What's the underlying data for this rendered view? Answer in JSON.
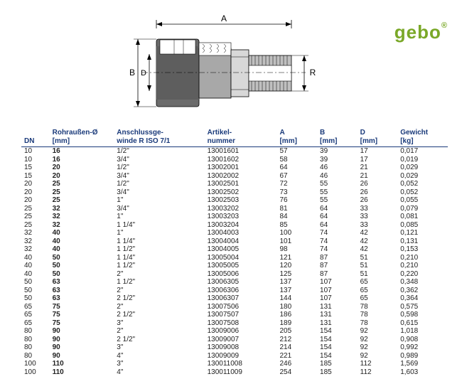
{
  "logo": {
    "text": "gebo",
    "reg": "®"
  },
  "diagram": {
    "labels": {
      "A": "A",
      "B": "B",
      "D": "D",
      "R": "R"
    },
    "stroke": "#000000",
    "fill_dark": "#6b6b6b",
    "fill_mid": "#a8a8a8",
    "fill_light": "#d8d8d8"
  },
  "table": {
    "header_color": "#1a3a7a",
    "columns": [
      {
        "l1": "",
        "l2": "DN"
      },
      {
        "l1": "Rohraußen-Ø",
        "l2": "[mm]"
      },
      {
        "l1": "Anschlussge-",
        "l2": "winde R ISO 7/1"
      },
      {
        "l1": "Artikel-",
        "l2": "nummer"
      },
      {
        "l1": "A",
        "l2": "[mm]"
      },
      {
        "l1": "B",
        "l2": "[mm]"
      },
      {
        "l1": "D",
        "l2": "[mm]"
      },
      {
        "l1": "Gewicht",
        "l2": "[kg]"
      }
    ],
    "rows": [
      [
        "10",
        "16",
        "1/2\"",
        "13001601",
        "57",
        "39",
        "17",
        "0,017"
      ],
      [
        "10",
        "16",
        "3/4\"",
        "13001602",
        "58",
        "39",
        "17",
        "0,019"
      ],
      [
        "15",
        "20",
        "1/2\"",
        "13002001",
        "64",
        "46",
        "21",
        "0,029"
      ],
      [
        "15",
        "20",
        "3/4\"",
        "13002002",
        "67",
        "46",
        "21",
        "0,029"
      ],
      [
        "20",
        "25",
        "1/2\"",
        "13002501",
        "72",
        "55",
        "26",
        "0,052"
      ],
      [
        "20",
        "25",
        "3/4\"",
        "13002502",
        "73",
        "55",
        "26",
        "0,052"
      ],
      [
        "20",
        "25",
        "1\"",
        "13002503",
        "76",
        "55",
        "26",
        "0,055"
      ],
      [
        "25",
        "32",
        "3/4\"",
        "13003202",
        "81",
        "64",
        "33",
        "0,079"
      ],
      [
        "25",
        "32",
        "1\"",
        "13003203",
        "84",
        "64",
        "33",
        "0,081"
      ],
      [
        "25",
        "32",
        "1 1/4\"",
        "13003204",
        "85",
        "64",
        "33",
        "0,085"
      ],
      [
        "32",
        "40",
        "1\"",
        "13004003",
        "100",
        "74",
        "42",
        "0,121"
      ],
      [
        "32",
        "40",
        "1 1/4\"",
        "13004004",
        "101",
        "74",
        "42",
        "0,131"
      ],
      [
        "32",
        "40",
        "1 1/2\"",
        "13004005",
        "98",
        "74",
        "42",
        "0,153"
      ],
      [
        "40",
        "50",
        "1 1/4\"",
        "13005004",
        "121",
        "87",
        "51",
        "0,210"
      ],
      [
        "40",
        "50",
        "1 1/2\"",
        "13005005",
        "120",
        "87",
        "51",
        "0,210"
      ],
      [
        "40",
        "50",
        "2\"",
        "13005006",
        "125",
        "87",
        "51",
        "0,220"
      ],
      [
        "50",
        "63",
        "1 1/2\"",
        "13006305",
        "137",
        "107",
        "65",
        "0,348"
      ],
      [
        "50",
        "63",
        "2\"",
        "13006306",
        "137",
        "107",
        "65",
        "0,362"
      ],
      [
        "50",
        "63",
        "2 1/2\"",
        "13006307",
        "144",
        "107",
        "65",
        "0,364"
      ],
      [
        "65",
        "75",
        "2\"",
        "13007506",
        "180",
        "131",
        "78",
        "0,575"
      ],
      [
        "65",
        "75",
        "2 1/2\"",
        "13007507",
        "186",
        "131",
        "78",
        "0,598"
      ],
      [
        "65",
        "75",
        "3\"",
        "13007508",
        "189",
        "131",
        "78",
        "0,615"
      ],
      [
        "80",
        "90",
        "2\"",
        "13009006",
        "205",
        "154",
        "92",
        "1,018"
      ],
      [
        "80",
        "90",
        "2 1/2\"",
        "13009007",
        "212",
        "154",
        "92",
        "0,908"
      ],
      [
        "80",
        "90",
        "3\"",
        "13009008",
        "214",
        "154",
        "92",
        "0,992"
      ],
      [
        "80",
        "90",
        "4\"",
        "13009009",
        "221",
        "154",
        "92",
        "0,989"
      ],
      [
        "100",
        "110",
        "3\"",
        "130011008",
        "246",
        "185",
        "112",
        "1,569"
      ],
      [
        "100",
        "110",
        "4\"",
        "130011009",
        "254",
        "185",
        "112",
        "1,603"
      ]
    ]
  }
}
